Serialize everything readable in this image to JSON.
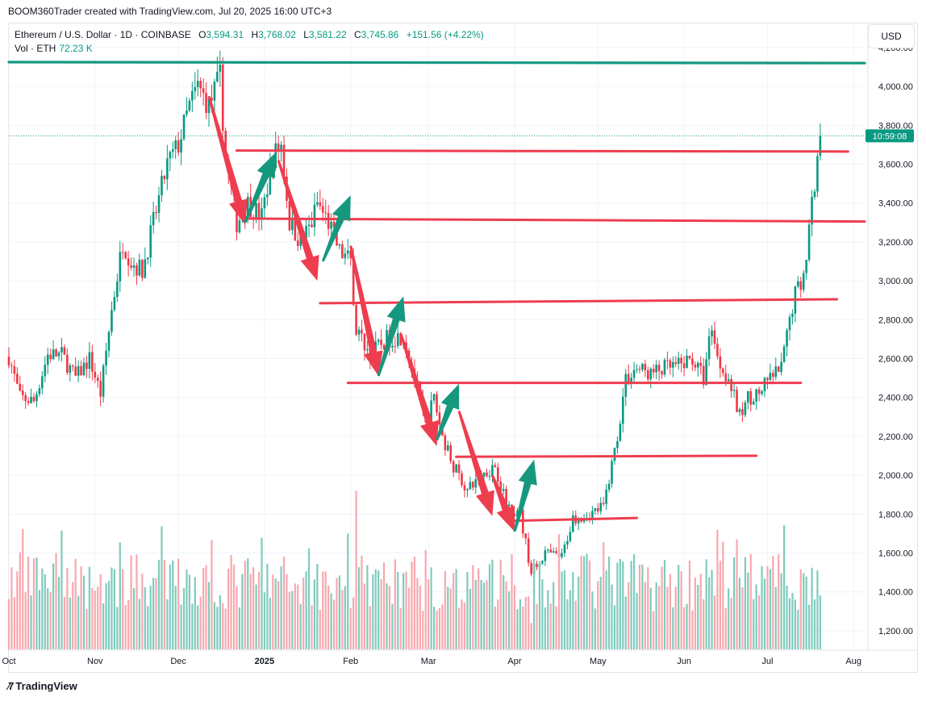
{
  "header": {
    "credit": "BOOM360Trader created with TradingView.com, Jul 20, 2025 16:00 UTC+3"
  },
  "legend": {
    "symbol": "Ethereum / U.S. Dollar · 1D · COINBASE",
    "open_label": "O",
    "open": "3,594.31",
    "high_label": "H",
    "high": "3,768.02",
    "low_label": "L",
    "low": "3,581.22",
    "close_label": "C",
    "close": "3,745.86",
    "change": "+151.56 (+4.22%)",
    "volume_label": "Vol · ETH",
    "volume": "72.23 K"
  },
  "price_axis": {
    "currency": "USD",
    "countdown": "10:59:08"
  },
  "footer": {
    "brand": "TradingView"
  },
  "colors": {
    "up": "#089981",
    "down": "#f23645",
    "up_volume": "#7fcbbd",
    "down_volume": "#f7a8ae",
    "drawing_red": "#ee3d4f",
    "drawing_teal": "#16987f",
    "badge_bg": "#089981"
  },
  "chart_data": {
    "type": "candlestick",
    "symbol": "ETHUSD",
    "interval": "1D",
    "x_range": [
      "2024-10-01",
      "2025-08-05"
    ],
    "y_range": [
      1100,
      4320
    ],
    "y_ticks": [
      1200,
      1400,
      1600,
      1800,
      2000,
      2200,
      2400,
      2600,
      2800,
      3000,
      3200,
      3400,
      3600,
      3800,
      4000,
      4200
    ],
    "y_tick_labels": [
      "1,200.00",
      "1,400.00",
      "1,600.00",
      "1,800.00",
      "2,000.00",
      "2,200.00",
      "2,400.00",
      "2,600.00",
      "2,800.00",
      "3,000.00",
      "3,200.00",
      "3,400.00",
      "3,600.00",
      "3,800.00",
      "4,000.00",
      "4,200.00"
    ],
    "x_ticks": [
      {
        "label": "Oct",
        "date": "2024-10-01"
      },
      {
        "label": "Nov",
        "date": "2024-11-01"
      },
      {
        "label": "Dec",
        "date": "2024-12-01"
      },
      {
        "label": "2025",
        "date": "2025-01-01",
        "bold": true
      },
      {
        "label": "Feb",
        "date": "2025-02-01"
      },
      {
        "label": "Mar",
        "date": "2025-03-01"
      },
      {
        "label": "Apr",
        "date": "2025-04-01"
      },
      {
        "label": "May",
        "date": "2025-05-01"
      },
      {
        "label": "Jun",
        "date": "2025-06-01"
      },
      {
        "label": "Jul",
        "date": "2025-07-01"
      },
      {
        "label": "Aug",
        "date": "2025-08-01"
      }
    ],
    "last_price": 3745.86,
    "close_path": [
      [
        "2024-10-01",
        2610
      ],
      [
        "2024-10-05",
        2400
      ],
      [
        "2024-10-10",
        2380
      ],
      [
        "2024-10-15",
        2620
      ],
      [
        "2024-10-20",
        2620
      ],
      [
        "2024-10-25",
        2500
      ],
      [
        "2024-10-30",
        2600
      ],
      [
        "2024-11-03",
        2420
      ],
      [
        "2024-11-07",
        2850
      ],
      [
        "2024-11-11",
        3200
      ],
      [
        "2024-11-14",
        3100
      ],
      [
        "2024-11-18",
        3050
      ],
      [
        "2024-11-22",
        3300
      ],
      [
        "2024-11-27",
        3600
      ],
      [
        "2024-12-01",
        3700
      ],
      [
        "2024-12-05",
        3900
      ],
      [
        "2024-12-08",
        4000
      ],
      [
        "2024-12-12",
        3900
      ],
      [
        "2024-12-16",
        4050
      ],
      [
        "2024-12-18",
        3620
      ],
      [
        "2024-12-22",
        3300
      ],
      [
        "2024-12-26",
        3400
      ],
      [
        "2024-12-31",
        3330
      ],
      [
        "2025-01-04",
        3640
      ],
      [
        "2025-01-07",
        3700
      ],
      [
        "2025-01-10",
        3300
      ],
      [
        "2025-01-14",
        3200
      ],
      [
        "2025-01-18",
        3300
      ],
      [
        "2025-01-20",
        3400
      ],
      [
        "2025-01-24",
        3300
      ],
      [
        "2025-01-28",
        3150
      ],
      [
        "2025-02-01",
        3100
      ],
      [
        "2025-02-03",
        2750
      ],
      [
        "2025-02-08",
        2620
      ],
      [
        "2025-02-14",
        2700
      ],
      [
        "2025-02-20",
        2720
      ],
      [
        "2025-02-24",
        2500
      ],
      [
        "2025-02-28",
        2250
      ],
      [
        "2025-03-03",
        2400
      ],
      [
        "2025-03-06",
        2200
      ],
      [
        "2025-03-10",
        2050
      ],
      [
        "2025-03-15",
        1920
      ],
      [
        "2025-03-20",
        2000
      ],
      [
        "2025-03-25",
        2050
      ],
      [
        "2025-03-29",
        1850
      ],
      [
        "2025-04-03",
        1800
      ],
      [
        "2025-04-07",
        1500
      ],
      [
        "2025-04-12",
        1600
      ],
      [
        "2025-04-18",
        1580
      ],
      [
        "2025-04-22",
        1780
      ],
      [
        "2025-04-28",
        1800
      ],
      [
        "2025-05-03",
        1840
      ],
      [
        "2025-05-08",
        2200
      ],
      [
        "2025-05-11",
        2500
      ],
      [
        "2025-05-15",
        2550
      ],
      [
        "2025-05-20",
        2520
      ],
      [
        "2025-05-25",
        2550
      ],
      [
        "2025-05-30",
        2560
      ],
      [
        "2025-06-04",
        2600
      ],
      [
        "2025-06-08",
        2500
      ],
      [
        "2025-06-11",
        2780
      ],
      [
        "2025-06-13",
        2600
      ],
      [
        "2025-06-17",
        2500
      ],
      [
        "2025-06-21",
        2300
      ],
      [
        "2025-06-24",
        2400
      ],
      [
        "2025-06-28",
        2420
      ],
      [
        "2025-07-02",
        2500
      ],
      [
        "2025-07-06",
        2550
      ],
      [
        "2025-07-09",
        2800
      ],
      [
        "2025-07-11",
        2950
      ],
      [
        "2025-07-13",
        2980
      ],
      [
        "2025-07-15",
        3150
      ],
      [
        "2025-07-17",
        3400
      ],
      [
        "2025-07-19",
        3600
      ],
      [
        "2025-07-20",
        3745.86
      ]
    ],
    "volume_max_index": [
      [
        "2025-02-03",
        1920
      ],
      [
        "2025-04-07",
        1240
      ]
    ],
    "horizontal_lines": [
      {
        "color": "teal",
        "from": "2024-10-01",
        "to": "2025-08-05",
        "y_start": 4125,
        "y_end": 4120
      },
      {
        "color": "red",
        "from": "2024-12-22",
        "to": "2025-07-30",
        "y_start": 3670,
        "y_end": 3665
      },
      {
        "color": "red",
        "from": "2024-12-26",
        "to": "2025-08-05",
        "y_start": 3320,
        "y_end": 3305
      },
      {
        "color": "red",
        "from": "2025-01-21",
        "to": "2025-07-26",
        "y_start": 2885,
        "y_end": 2905
      },
      {
        "color": "red",
        "from": "2025-01-31",
        "to": "2025-07-13",
        "y_start": 2475,
        "y_end": 2475
      },
      {
        "color": "red",
        "from": "2025-03-11",
        "to": "2025-06-27",
        "y_start": 2095,
        "y_end": 2100
      },
      {
        "color": "red",
        "from": "2025-03-30",
        "to": "2025-05-15",
        "y_start": 1765,
        "y_end": 1780
      }
    ],
    "arrows": [
      {
        "color": "red",
        "from": [
          "2024-12-12",
          3950
        ],
        "to": [
          "2024-12-25",
          3290
        ]
      },
      {
        "color": "teal",
        "from": [
          "2024-12-25",
          3300
        ],
        "to": [
          "2025-01-05",
          3660
        ]
      },
      {
        "color": "red",
        "from": [
          "2025-01-06",
          3620
        ],
        "to": [
          "2025-01-20",
          3000
        ]
      },
      {
        "color": "teal",
        "from": [
          "2025-01-22",
          3100
        ],
        "to": [
          "2025-02-01",
          3440
        ]
      },
      {
        "color": "red",
        "from": [
          "2025-02-01",
          3180
        ],
        "to": [
          "2025-02-11",
          2510
        ]
      },
      {
        "color": "teal",
        "from": [
          "2025-02-11",
          2510
        ],
        "to": [
          "2025-02-20",
          2920
        ]
      },
      {
        "color": "red",
        "from": [
          "2025-02-19",
          2730
        ],
        "to": [
          "2025-03-04",
          2150
        ]
      },
      {
        "color": "teal",
        "from": [
          "2025-03-04",
          2180
        ],
        "to": [
          "2025-03-12",
          2470
        ]
      },
      {
        "color": "red",
        "from": [
          "2025-03-12",
          2330
        ],
        "to": [
          "2025-03-24",
          1790
        ]
      },
      {
        "color": "red",
        "from": [
          "2025-03-24",
          2000
        ],
        "to": [
          "2025-04-01",
          1710
        ]
      },
      {
        "color": "teal",
        "from": [
          "2025-04-01",
          1710
        ],
        "to": [
          "2025-04-08",
          2080
        ]
      }
    ]
  }
}
